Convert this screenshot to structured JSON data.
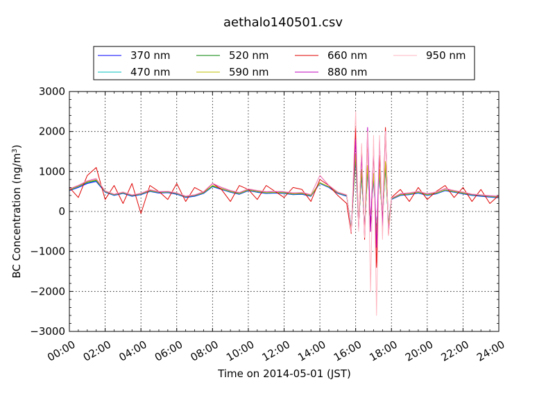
{
  "chart_data": {
    "type": "line",
    "title": "aethalo140501.csv",
    "xlabel": "Time on 2014-05-01 (JST)",
    "ylabel_main": "BC Concentration (ng/m",
    "ylabel_sup": "3",
    "ylabel_close": ")",
    "xlim": [
      "00:00",
      "24:00"
    ],
    "ylim": [
      -3000,
      3000
    ],
    "grid": true,
    "legend_placement": "top-center",
    "x_ticks": [
      {
        "label": "00:00",
        "hour": 0
      },
      {
        "label": "02:00",
        "hour": 2
      },
      {
        "label": "04:00",
        "hour": 4
      },
      {
        "label": "06:00",
        "hour": 6
      },
      {
        "label": "08:00",
        "hour": 8
      },
      {
        "label": "10:00",
        "hour": 10
      },
      {
        "label": "12:00",
        "hour": 12
      },
      {
        "label": "14:00",
        "hour": 14
      },
      {
        "label": "16:00",
        "hour": 16
      },
      {
        "label": "18:00",
        "hour": 18
      },
      {
        "label": "20:00",
        "hour": 20
      },
      {
        "label": "22:00",
        "hour": 22
      },
      {
        "label": "24:00",
        "hour": 24
      }
    ],
    "y_ticks": [
      {
        "label": "3000",
        "value": 3000
      },
      {
        "label": "2000",
        "value": 2000
      },
      {
        "label": "1000",
        "value": 1000
      },
      {
        "label": "0",
        "value": 0
      },
      {
        "label": "−1000",
        "value": -1000
      },
      {
        "label": "−2000",
        "value": -2000
      },
      {
        "label": "−3000",
        "value": -3000
      }
    ],
    "series_x": [
      "00:00",
      "00:30",
      "01:00",
      "01:30",
      "02:00",
      "02:30",
      "03:00",
      "03:30",
      "04:00",
      "04:30",
      "05:00",
      "05:30",
      "06:00",
      "06:30",
      "07:00",
      "07:30",
      "08:00",
      "08:30",
      "09:00",
      "09:30",
      "10:00",
      "10:30",
      "11:00",
      "11:30",
      "12:00",
      "12:30",
      "13:00",
      "13:30",
      "14:00",
      "14:30",
      "15:00",
      "15:30",
      "15:45",
      "16:00",
      "16:10",
      "16:20",
      "16:30",
      "16:40",
      "16:50",
      "17:00",
      "17:10",
      "17:20",
      "17:30",
      "17:40",
      "17:50",
      "18:00",
      "18:30",
      "19:00",
      "19:30",
      "20:00",
      "20:30",
      "21:00",
      "21:30",
      "22:00",
      "22:30",
      "23:00",
      "23:30",
      "24:00"
    ],
    "series": [
      {
        "name": "370 nm",
        "color": "#0000ff",
        "values": [
          520,
          600,
          700,
          750,
          480,
          400,
          450,
          380,
          420,
          500,
          460,
          470,
          430,
          350,
          380,
          450,
          620,
          550,
          480,
          430,
          520,
          480,
          450,
          460,
          450,
          420,
          430,
          380,
          700,
          600,
          450,
          380,
          -400,
          1300,
          -300,
          900,
          -400,
          1000,
          -300,
          800,
          -500,
          900,
          -200,
          1100,
          -300,
          300,
          400,
          420,
          460,
          400,
          440,
          520,
          480,
          440,
          400,
          380,
          360,
          340
        ]
      },
      {
        "name": "470 nm",
        "color": "#00bfbf",
        "values": [
          530,
          620,
          720,
          770,
          490,
          410,
          460,
          390,
          430,
          510,
          470,
          480,
          440,
          360,
          390,
          460,
          630,
          560,
          490,
          440,
          530,
          490,
          460,
          470,
          460,
          430,
          440,
          390,
          710,
          610,
          460,
          390,
          -420,
          1350,
          -320,
          950,
          -420,
          1050,
          -320,
          850,
          -520,
          950,
          -220,
          1150,
          -320,
          310,
          410,
          430,
          470,
          410,
          450,
          530,
          490,
          450,
          410,
          390,
          370,
          350
        ]
      },
      {
        "name": "520 nm",
        "color": "#008000",
        "values": [
          540,
          630,
          730,
          780,
          500,
          420,
          470,
          400,
          440,
          520,
          480,
          490,
          450,
          370,
          400,
          470,
          640,
          570,
          500,
          450,
          540,
          500,
          470,
          480,
          470,
          440,
          450,
          400,
          720,
          620,
          470,
          400,
          -450,
          1400,
          -350,
          1000,
          -450,
          1100,
          -350,
          900,
          -550,
          1000,
          -250,
          1200,
          -350,
          320,
          420,
          440,
          480,
          420,
          460,
          540,
          500,
          460,
          420,
          400,
          380,
          360
        ]
      },
      {
        "name": "590 nm",
        "color": "#bfbf00",
        "values": [
          540,
          630,
          740,
          790,
          500,
          420,
          470,
          400,
          440,
          520,
          480,
          490,
          450,
          370,
          400,
          470,
          650,
          570,
          500,
          450,
          540,
          500,
          470,
          480,
          470,
          440,
          450,
          400,
          720,
          620,
          470,
          400,
          -460,
          1450,
          -360,
          1050,
          -460,
          1150,
          -360,
          950,
          -560,
          1050,
          -260,
          1250,
          -360,
          320,
          420,
          440,
          480,
          420,
          460,
          540,
          500,
          460,
          420,
          400,
          380,
          360
        ]
      },
      {
        "name": "660 nm",
        "color": "#e00000",
        "values": [
          600,
          350,
          900,
          1100,
          300,
          650,
          200,
          700,
          -50,
          650,
          500,
          300,
          700,
          250,
          600,
          480,
          700,
          550,
          250,
          650,
          550,
          300,
          650,
          500,
          350,
          600,
          550,
          250,
          800,
          650,
          400,
          200,
          -550,
          2100,
          -400,
          1600,
          -700,
          1800,
          -500,
          1500,
          -1400,
          1400,
          -300,
          2100,
          -600,
          350,
          550,
          250,
          600,
          300,
          500,
          650,
          350,
          600,
          250,
          550,
          200,
          400
        ]
      },
      {
        "name": "880 nm",
        "color": "#bf00bf",
        "values": [
          560,
          650,
          760,
          820,
          510,
          430,
          480,
          410,
          450,
          540,
          490,
          500,
          460,
          380,
          410,
          490,
          700,
          600,
          520,
          470,
          560,
          520,
          490,
          500,
          490,
          460,
          470,
          420,
          900,
          650,
          480,
          410,
          -500,
          1800,
          -450,
          1400,
          -600,
          2100,
          -500,
          1600,
          -900,
          1800,
          -400,
          2000,
          -500,
          330,
          440,
          460,
          500,
          440,
          480,
          570,
          520,
          480,
          430,
          410,
          390,
          380
        ]
      },
      {
        "name": "950 nm",
        "color": "#ffb6c1",
        "values": [
          570,
          660,
          770,
          830,
          520,
          440,
          490,
          420,
          460,
          550,
          500,
          510,
          470,
          390,
          420,
          500,
          710,
          610,
          530,
          480,
          570,
          530,
          500,
          510,
          500,
          470,
          480,
          430,
          910,
          660,
          490,
          420,
          -520,
          2500,
          -500,
          1700,
          -650,
          2000,
          -2000,
          1900,
          -2600,
          1900,
          -700,
          2000,
          -600,
          340,
          450,
          470,
          510,
          450,
          490,
          580,
          530,
          490,
          440,
          420,
          400,
          390
        ]
      }
    ]
  }
}
